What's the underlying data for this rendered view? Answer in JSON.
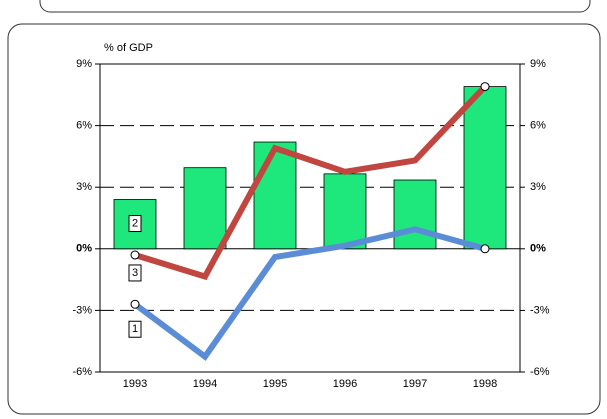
{
  "chart_data": {
    "type": "bar",
    "y_label": "% of GDP",
    "categories": [
      "1993",
      "1994",
      "1995",
      "1996",
      "1997",
      "1998"
    ],
    "series": [
      {
        "name": "2",
        "type": "bar",
        "color": "#1ee87b",
        "values": [
          2.4,
          3.95,
          5.2,
          3.65,
          3.35,
          7.9
        ]
      },
      {
        "name": "3",
        "type": "line",
        "color": "#c0463f",
        "values": [
          -0.3,
          -1.35,
          4.9,
          3.75,
          4.3,
          7.9
        ]
      },
      {
        "name": "1",
        "type": "line",
        "color": "#5b8dd6",
        "values": [
          -2.7,
          -5.25,
          -0.4,
          0.15,
          0.95,
          0
        ]
      }
    ],
    "ylim": [
      -6,
      9
    ],
    "yticks": [
      {
        "value": -6,
        "label": "-6%"
      },
      {
        "value": -3,
        "label": "-3%"
      },
      {
        "value": 0,
        "label": "0%"
      },
      {
        "value": 3,
        "label": "3%"
      },
      {
        "value": 6,
        "label": "6%"
      },
      {
        "value": 9,
        "label": "9%"
      }
    ],
    "y2lim": [
      -6,
      9
    ],
    "y2ticks": [
      {
        "value": -6,
        "label": "-6%"
      },
      {
        "value": -3,
        "label": "-3%"
      },
      {
        "value": 0,
        "label": "0%"
      },
      {
        "value": 3,
        "label": "3%"
      },
      {
        "value": 6,
        "label": "6%"
      },
      {
        "value": 9,
        "label": "9%"
      }
    ],
    "grid": true
  }
}
